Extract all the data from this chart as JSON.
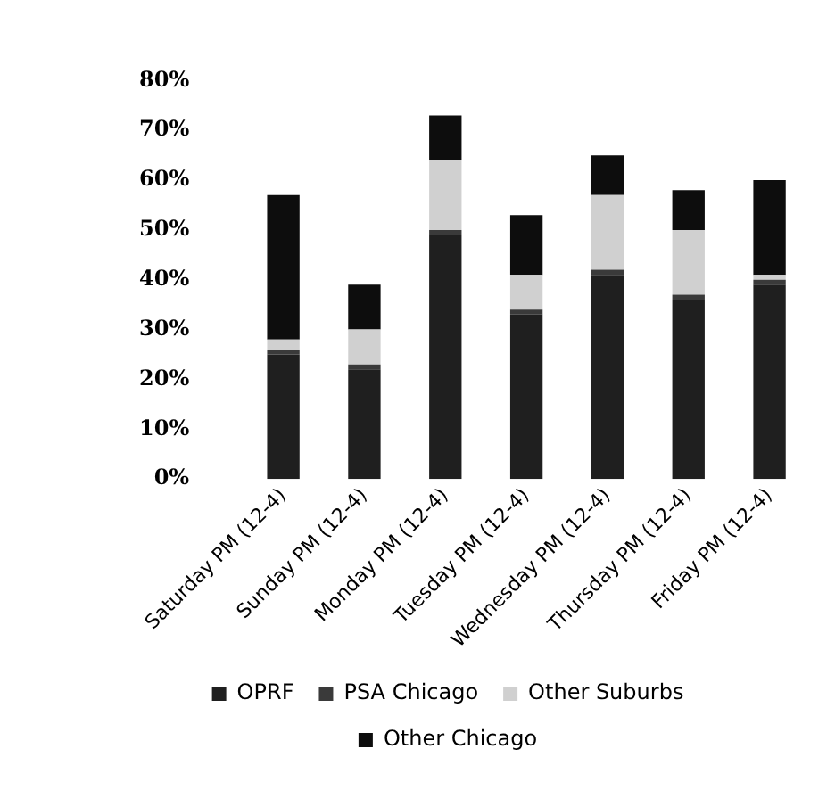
{
  "chart_data": {
    "type": "bar",
    "stacked": true,
    "categories": [
      "Saturday PM (12-4)",
      "Sunday PM (12-4)",
      "Monday PM (12-4)",
      "Tuesday PM (12-4)",
      "Wednesday PM (12-4)",
      "Thursday PM (12-4)",
      "Friday PM (12-4)"
    ],
    "series": [
      {
        "name": "OPRF",
        "color": "#1f1f1f",
        "values": [
          25,
          22,
          49,
          33,
          41,
          36,
          39
        ]
      },
      {
        "name": "PSA Chicago",
        "color": "#3a3a3a",
        "values": [
          1,
          1,
          1,
          1,
          1,
          1,
          1
        ]
      },
      {
        "name": "Other Suburbs",
        "color": "#d0d0d0",
        "values": [
          2,
          7,
          14,
          7,
          15,
          13,
          1
        ]
      },
      {
        "name": "Other Chicago",
        "color": "#0d0d0d",
        "values": [
          29,
          9,
          9,
          12,
          8,
          8,
          19
        ]
      }
    ],
    "ylim": [
      0,
      80
    ],
    "yticks": [
      {
        "value": 0,
        "label": "0%"
      },
      {
        "value": 10,
        "label": "10%"
      },
      {
        "value": 20,
        "label": "20%"
      },
      {
        "value": 30,
        "label": "30%"
      },
      {
        "value": 40,
        "label": "40%"
      },
      {
        "value": 50,
        "label": "50%"
      },
      {
        "value": 60,
        "label": "60%"
      },
      {
        "value": 70,
        "label": "70%"
      },
      {
        "value": 80,
        "label": "80%"
      }
    ],
    "grid": false,
    "legend": "bottom"
  }
}
